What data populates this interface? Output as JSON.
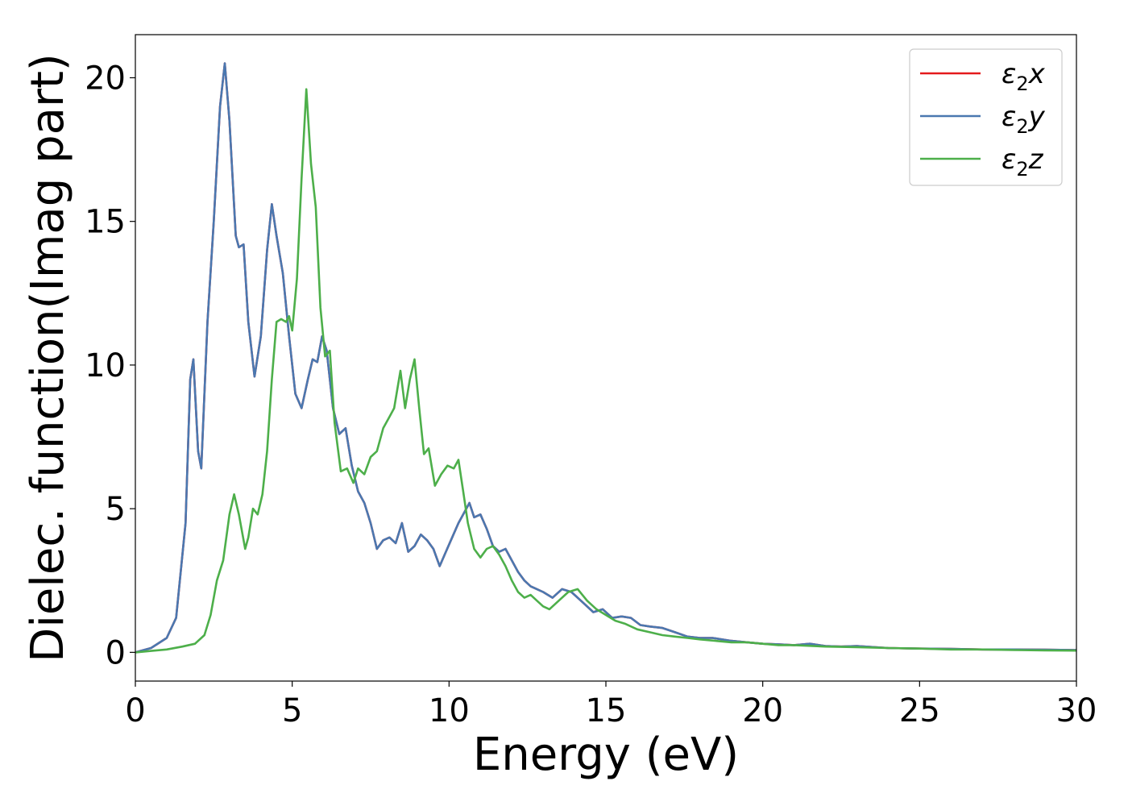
{
  "chart_data": {
    "type": "line",
    "title": "",
    "xlabel": "Energy (eV)",
    "ylabel": "Dielec. function(Imag part)",
    "xlim": [
      0,
      30
    ],
    "ylim": [
      -1.0,
      21.5
    ],
    "xticks": [
      0,
      5,
      10,
      15,
      20,
      25,
      30
    ],
    "yticks": [
      0,
      5,
      10,
      15,
      20
    ],
    "grid": false,
    "legend_position": "top-right",
    "series": [
      {
        "name": "ε2x",
        "legend_main": "ε",
        "legend_sub": "2",
        "legend_var": "x",
        "color": "#e41a1c",
        "points": [
          [
            0,
            0
          ],
          [
            0.5,
            0.15
          ],
          [
            1.0,
            0.5
          ],
          [
            1.3,
            1.2
          ],
          [
            1.6,
            4.5
          ],
          [
            1.75,
            9.5
          ],
          [
            1.85,
            10.2
          ],
          [
            2.0,
            7.0
          ],
          [
            2.1,
            6.4
          ],
          [
            2.3,
            11.5
          ],
          [
            2.5,
            15.0
          ],
          [
            2.7,
            19.0
          ],
          [
            2.85,
            20.5
          ],
          [
            3.0,
            18.5
          ],
          [
            3.2,
            14.5
          ],
          [
            3.3,
            14.1
          ],
          [
            3.45,
            14.2
          ],
          [
            3.6,
            11.5
          ],
          [
            3.8,
            9.6
          ],
          [
            4.0,
            11.0
          ],
          [
            4.2,
            14.0
          ],
          [
            4.35,
            15.6
          ],
          [
            4.5,
            14.5
          ],
          [
            4.7,
            13.2
          ],
          [
            4.9,
            11.0
          ],
          [
            5.1,
            9.0
          ],
          [
            5.3,
            8.5
          ],
          [
            5.5,
            9.5
          ],
          [
            5.65,
            10.2
          ],
          [
            5.8,
            10.1
          ],
          [
            5.95,
            11.0
          ],
          [
            6.1,
            10.5
          ],
          [
            6.3,
            8.5
          ],
          [
            6.5,
            7.6
          ],
          [
            6.7,
            7.8
          ],
          [
            6.9,
            6.5
          ],
          [
            7.1,
            5.6
          ],
          [
            7.3,
            5.2
          ],
          [
            7.5,
            4.5
          ],
          [
            7.7,
            3.6
          ],
          [
            7.9,
            3.9
          ],
          [
            8.1,
            4.0
          ],
          [
            8.3,
            3.8
          ],
          [
            8.5,
            4.5
          ],
          [
            8.7,
            3.5
          ],
          [
            8.9,
            3.7
          ],
          [
            9.1,
            4.1
          ],
          [
            9.3,
            3.9
          ],
          [
            9.5,
            3.6
          ],
          [
            9.7,
            3.0
          ],
          [
            9.9,
            3.5
          ],
          [
            10.1,
            4.0
          ],
          [
            10.3,
            4.5
          ],
          [
            10.5,
            4.9
          ],
          [
            10.65,
            5.2
          ],
          [
            10.8,
            4.7
          ],
          [
            11.0,
            4.8
          ],
          [
            11.2,
            4.3
          ],
          [
            11.4,
            3.7
          ],
          [
            11.6,
            3.5
          ],
          [
            11.8,
            3.6
          ],
          [
            12.0,
            3.2
          ],
          [
            12.2,
            2.8
          ],
          [
            12.4,
            2.5
          ],
          [
            12.6,
            2.3
          ],
          [
            12.8,
            2.2
          ],
          [
            13.0,
            2.1
          ],
          [
            13.3,
            1.9
          ],
          [
            13.6,
            2.2
          ],
          [
            13.9,
            2.1
          ],
          [
            14.2,
            1.8
          ],
          [
            14.6,
            1.4
          ],
          [
            14.9,
            1.5
          ],
          [
            15.2,
            1.2
          ],
          [
            15.5,
            1.25
          ],
          [
            15.8,
            1.2
          ],
          [
            16.1,
            0.95
          ],
          [
            16.4,
            0.9
          ],
          [
            16.8,
            0.85
          ],
          [
            17.2,
            0.7
          ],
          [
            17.6,
            0.55
          ],
          [
            18.0,
            0.5
          ],
          [
            18.4,
            0.5
          ],
          [
            19.0,
            0.4
          ],
          [
            19.5,
            0.35
          ],
          [
            20.0,
            0.3
          ],
          [
            20.5,
            0.28
          ],
          [
            21.0,
            0.25
          ],
          [
            21.5,
            0.3
          ],
          [
            22.0,
            0.22
          ],
          [
            22.5,
            0.2
          ],
          [
            23.0,
            0.22
          ],
          [
            24.0,
            0.15
          ],
          [
            25.0,
            0.13
          ],
          [
            26.0,
            0.12
          ],
          [
            27.0,
            0.1
          ],
          [
            28.0,
            0.1
          ],
          [
            29.0,
            0.09
          ],
          [
            30.0,
            0.08
          ]
        ]
      },
      {
        "name": "ε2y",
        "legend_main": "ε",
        "legend_sub": "2",
        "legend_var": "y",
        "color": "#4a78b0",
        "points": [
          [
            0,
            0
          ],
          [
            0.5,
            0.15
          ],
          [
            1.0,
            0.5
          ],
          [
            1.3,
            1.2
          ],
          [
            1.6,
            4.5
          ],
          [
            1.75,
            9.5
          ],
          [
            1.85,
            10.2
          ],
          [
            2.0,
            7.0
          ],
          [
            2.1,
            6.4
          ],
          [
            2.3,
            11.5
          ],
          [
            2.5,
            15.0
          ],
          [
            2.7,
            19.0
          ],
          [
            2.85,
            20.5
          ],
          [
            3.0,
            18.5
          ],
          [
            3.2,
            14.5
          ],
          [
            3.3,
            14.1
          ],
          [
            3.45,
            14.2
          ],
          [
            3.6,
            11.5
          ],
          [
            3.8,
            9.6
          ],
          [
            4.0,
            11.0
          ],
          [
            4.2,
            14.0
          ],
          [
            4.35,
            15.6
          ],
          [
            4.5,
            14.5
          ],
          [
            4.7,
            13.2
          ],
          [
            4.9,
            11.0
          ],
          [
            5.1,
            9.0
          ],
          [
            5.3,
            8.5
          ],
          [
            5.5,
            9.5
          ],
          [
            5.65,
            10.2
          ],
          [
            5.8,
            10.1
          ],
          [
            5.95,
            11.0
          ],
          [
            6.1,
            10.5
          ],
          [
            6.3,
            8.5
          ],
          [
            6.5,
            7.6
          ],
          [
            6.7,
            7.8
          ],
          [
            6.9,
            6.5
          ],
          [
            7.1,
            5.6
          ],
          [
            7.3,
            5.2
          ],
          [
            7.5,
            4.5
          ],
          [
            7.7,
            3.6
          ],
          [
            7.9,
            3.9
          ],
          [
            8.1,
            4.0
          ],
          [
            8.3,
            3.8
          ],
          [
            8.5,
            4.5
          ],
          [
            8.7,
            3.5
          ],
          [
            8.9,
            3.7
          ],
          [
            9.1,
            4.1
          ],
          [
            9.3,
            3.9
          ],
          [
            9.5,
            3.6
          ],
          [
            9.7,
            3.0
          ],
          [
            9.9,
            3.5
          ],
          [
            10.1,
            4.0
          ],
          [
            10.3,
            4.5
          ],
          [
            10.5,
            4.9
          ],
          [
            10.65,
            5.2
          ],
          [
            10.8,
            4.7
          ],
          [
            11.0,
            4.8
          ],
          [
            11.2,
            4.3
          ],
          [
            11.4,
            3.7
          ],
          [
            11.6,
            3.5
          ],
          [
            11.8,
            3.6
          ],
          [
            12.0,
            3.2
          ],
          [
            12.2,
            2.8
          ],
          [
            12.4,
            2.5
          ],
          [
            12.6,
            2.3
          ],
          [
            12.8,
            2.2
          ],
          [
            13.0,
            2.1
          ],
          [
            13.3,
            1.9
          ],
          [
            13.6,
            2.2
          ],
          [
            13.9,
            2.1
          ],
          [
            14.2,
            1.8
          ],
          [
            14.6,
            1.4
          ],
          [
            14.9,
            1.5
          ],
          [
            15.2,
            1.2
          ],
          [
            15.5,
            1.25
          ],
          [
            15.8,
            1.2
          ],
          [
            16.1,
            0.95
          ],
          [
            16.4,
            0.9
          ],
          [
            16.8,
            0.85
          ],
          [
            17.2,
            0.7
          ],
          [
            17.6,
            0.55
          ],
          [
            18.0,
            0.5
          ],
          [
            18.4,
            0.5
          ],
          [
            19.0,
            0.4
          ],
          [
            19.5,
            0.35
          ],
          [
            20.0,
            0.3
          ],
          [
            20.5,
            0.28
          ],
          [
            21.0,
            0.25
          ],
          [
            21.5,
            0.3
          ],
          [
            22.0,
            0.22
          ],
          [
            22.5,
            0.2
          ],
          [
            23.0,
            0.22
          ],
          [
            24.0,
            0.15
          ],
          [
            25.0,
            0.13
          ],
          [
            26.0,
            0.12
          ],
          [
            27.0,
            0.1
          ],
          [
            28.0,
            0.1
          ],
          [
            29.0,
            0.09
          ],
          [
            30.0,
            0.08
          ]
        ]
      },
      {
        "name": "ε2z",
        "legend_main": "ε",
        "legend_sub": "2",
        "legend_var": "z",
        "color": "#4daf4a",
        "points": [
          [
            0,
            0
          ],
          [
            0.5,
            0.05
          ],
          [
            1.0,
            0.1
          ],
          [
            1.5,
            0.2
          ],
          [
            1.9,
            0.3
          ],
          [
            2.2,
            0.6
          ],
          [
            2.4,
            1.3
          ],
          [
            2.6,
            2.5
          ],
          [
            2.8,
            3.2
          ],
          [
            3.0,
            4.8
          ],
          [
            3.15,
            5.5
          ],
          [
            3.3,
            4.8
          ],
          [
            3.5,
            3.6
          ],
          [
            3.6,
            4.0
          ],
          [
            3.75,
            5.0
          ],
          [
            3.9,
            4.8
          ],
          [
            4.05,
            5.5
          ],
          [
            4.2,
            7.0
          ],
          [
            4.35,
            9.5
          ],
          [
            4.5,
            11.5
          ],
          [
            4.65,
            11.6
          ],
          [
            4.8,
            11.5
          ],
          [
            4.9,
            11.7
          ],
          [
            5.0,
            11.2
          ],
          [
            5.15,
            13.0
          ],
          [
            5.3,
            16.5
          ],
          [
            5.45,
            19.6
          ],
          [
            5.6,
            17.0
          ],
          [
            5.75,
            15.5
          ],
          [
            5.9,
            12.0
          ],
          [
            6.05,
            10.3
          ],
          [
            6.2,
            10.5
          ],
          [
            6.35,
            8.0
          ],
          [
            6.55,
            6.3
          ],
          [
            6.75,
            6.4
          ],
          [
            6.95,
            5.9
          ],
          [
            7.1,
            6.4
          ],
          [
            7.3,
            6.2
          ],
          [
            7.5,
            6.8
          ],
          [
            7.7,
            7.0
          ],
          [
            7.9,
            7.8
          ],
          [
            8.1,
            8.2
          ],
          [
            8.25,
            8.5
          ],
          [
            8.45,
            9.8
          ],
          [
            8.6,
            8.5
          ],
          [
            8.75,
            9.5
          ],
          [
            8.9,
            10.2
          ],
          [
            9.05,
            8.5
          ],
          [
            9.2,
            6.9
          ],
          [
            9.35,
            7.1
          ],
          [
            9.55,
            5.8
          ],
          [
            9.75,
            6.2
          ],
          [
            9.95,
            6.5
          ],
          [
            10.15,
            6.4
          ],
          [
            10.3,
            6.7
          ],
          [
            10.45,
            5.6
          ],
          [
            10.6,
            4.5
          ],
          [
            10.8,
            3.6
          ],
          [
            11.0,
            3.3
          ],
          [
            11.2,
            3.6
          ],
          [
            11.4,
            3.7
          ],
          [
            11.6,
            3.4
          ],
          [
            11.8,
            3.0
          ],
          [
            12.0,
            2.5
          ],
          [
            12.2,
            2.1
          ],
          [
            12.4,
            1.9
          ],
          [
            12.6,
            2.0
          ],
          [
            12.8,
            1.8
          ],
          [
            13.0,
            1.6
          ],
          [
            13.2,
            1.5
          ],
          [
            13.5,
            1.8
          ],
          [
            13.8,
            2.1
          ],
          [
            14.1,
            2.2
          ],
          [
            14.4,
            1.8
          ],
          [
            14.7,
            1.5
          ],
          [
            15.0,
            1.3
          ],
          [
            15.3,
            1.1
          ],
          [
            15.6,
            1.0
          ],
          [
            16.0,
            0.8
          ],
          [
            16.4,
            0.7
          ],
          [
            16.8,
            0.6
          ],
          [
            17.2,
            0.55
          ],
          [
            17.6,
            0.5
          ],
          [
            18.0,
            0.45
          ],
          [
            18.5,
            0.4
          ],
          [
            19.0,
            0.35
          ],
          [
            19.5,
            0.35
          ],
          [
            20.0,
            0.3
          ],
          [
            20.5,
            0.25
          ],
          [
            21.0,
            0.25
          ],
          [
            22.0,
            0.2
          ],
          [
            23.0,
            0.18
          ],
          [
            24.0,
            0.15
          ],
          [
            25.0,
            0.13
          ],
          [
            26.0,
            0.1
          ],
          [
            27.0,
            0.1
          ],
          [
            28.0,
            0.08
          ],
          [
            29.0,
            0.07
          ],
          [
            30.0,
            0.06
          ]
        ]
      }
    ]
  }
}
